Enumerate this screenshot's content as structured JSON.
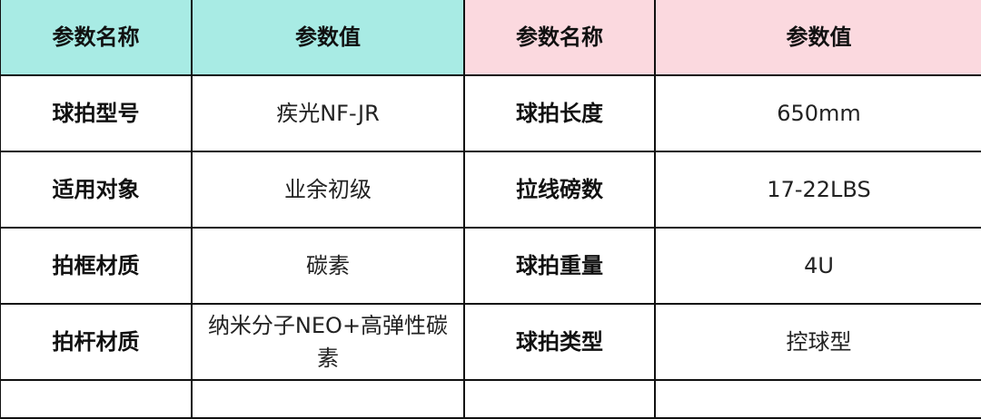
{
  "colors": {
    "header_left": "#a8ebe4",
    "header_right": "#fbd9df",
    "border": "#111111"
  },
  "headers": [
    "参数名称",
    "参数值",
    "参数名称",
    "参数值"
  ],
  "rows": [
    {
      "k1": "球拍型号",
      "v1": "疾光NF-JR",
      "k2": "球拍长度",
      "v2": "650mm"
    },
    {
      "k1": "适用对象",
      "v1": "业余初级",
      "k2": "拉线磅数",
      "v2": "17-22LBS"
    },
    {
      "k1": "拍框材质",
      "v1": "碳素",
      "k2": "球拍重量",
      "v2": "4U"
    },
    {
      "k1": "拍杆材质",
      "v1": "纳米分子NEO+高弹性碳素",
      "k2": "球拍类型",
      "v2": "控球型"
    }
  ]
}
